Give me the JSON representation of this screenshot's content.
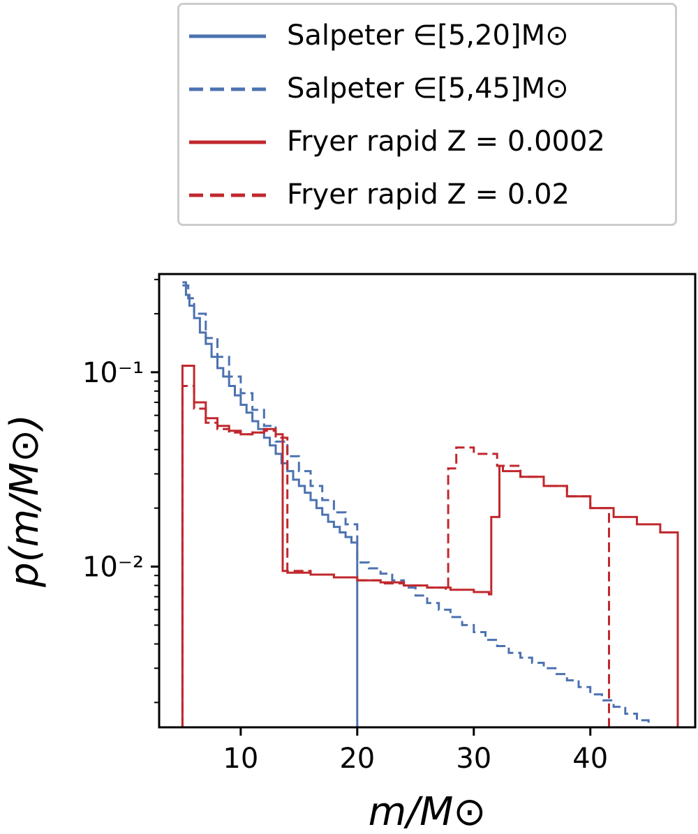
{
  "chart_data": {
    "type": "line",
    "xlabel": "m/M⊙",
    "ylabel": "p(m/M⊙)",
    "xlim": [
      3,
      49
    ],
    "ylim": [
      0.00149,
      0.32
    ],
    "yscale": "log",
    "x_ticks": [
      10,
      20,
      30,
      40
    ],
    "x_tick_labels": [
      "10",
      "20",
      "30",
      "40"
    ],
    "y_ticks": [
      0.01,
      0.1
    ],
    "y_tick_labels": [
      "10⁻²",
      "10⁻¹"
    ],
    "legend_placement": "above-plot",
    "grid": false,
    "series": [
      {
        "name": "Salpeter ∈[5,20]M⊙",
        "color": "#4C72B0",
        "linestyle": "solid",
        "x": [
          5,
          5.3,
          5.6,
          6,
          6.5,
          7,
          7.5,
          8,
          8.5,
          9,
          9.5,
          10,
          10.5,
          11,
          11.5,
          12,
          12.5,
          13,
          13.5,
          14,
          14.5,
          15,
          15.5,
          16,
          16.5,
          17,
          17.5,
          18,
          18.5,
          19,
          19.5,
          20,
          20
        ],
        "y": [
          0.29,
          0.25,
          0.22,
          0.19,
          0.16,
          0.14,
          0.12,
          0.105,
          0.095,
          0.085,
          0.076,
          0.068,
          0.062,
          0.056,
          0.051,
          0.046,
          0.042,
          0.038,
          0.034,
          0.031,
          0.028,
          0.026,
          0.024,
          0.022,
          0.02,
          0.0185,
          0.017,
          0.016,
          0.015,
          0.0142,
          0.0133,
          0.0125,
          0.00149
        ]
      },
      {
        "name": "Salpeter ∈[5,45]M⊙",
        "color": "#4C72B0",
        "linestyle": "dashed",
        "x": [
          5,
          5.5,
          6,
          7,
          8,
          9,
          10,
          11,
          12,
          13,
          14,
          15,
          16,
          17,
          18,
          19,
          20,
          21,
          22,
          23,
          24,
          25,
          26,
          27,
          28,
          29,
          30,
          31,
          32,
          33,
          34,
          35,
          36,
          37,
          38,
          39,
          40,
          41,
          42,
          43,
          44,
          45
        ],
        "y": [
          0.28,
          0.24,
          0.2,
          0.15,
          0.12,
          0.095,
          0.078,
          0.064,
          0.053,
          0.044,
          0.037,
          0.031,
          0.026,
          0.022,
          0.019,
          0.0165,
          0.0105,
          0.0098,
          0.0092,
          0.0085,
          0.0078,
          0.0071,
          0.0065,
          0.006,
          0.0055,
          0.005,
          0.0046,
          0.0042,
          0.0039,
          0.0036,
          0.0034,
          0.0032,
          0.003,
          0.0028,
          0.0026,
          0.0024,
          0.0022,
          0.00205,
          0.0019,
          0.00175,
          0.00162,
          0.0015
        ]
      },
      {
        "name": "Fryer rapid Z = 0.0002",
        "color": "#C0282D",
        "linestyle": "solid",
        "x": [
          5,
          5,
          6,
          7,
          8,
          9,
          10,
          11,
          12,
          13,
          13.6,
          14,
          16,
          18,
          20,
          22,
          24,
          26,
          28,
          30,
          31.3,
          31.5,
          32.2,
          32.5,
          34,
          36,
          38,
          40,
          42,
          44,
          46,
          47.5,
          47.5
        ],
        "y": [
          0.00149,
          0.108,
          0.07,
          0.058,
          0.053,
          0.05,
          0.048,
          0.049,
          0.051,
          0.048,
          0.0095,
          0.0093,
          0.0091,
          0.0088,
          0.0085,
          0.0083,
          0.008,
          0.0078,
          0.0076,
          0.0074,
          0.0072,
          0.018,
          0.033,
          0.031,
          0.029,
          0.026,
          0.023,
          0.02,
          0.018,
          0.0165,
          0.015,
          0.014,
          0.00149
        ]
      },
      {
        "name": "Fryer rapid Z = 0.02",
        "color": "#C0282D",
        "linestyle": "dashed",
        "x": [
          5,
          5,
          6,
          7,
          8,
          9,
          10,
          11,
          12,
          13,
          14,
          16,
          18,
          20,
          22,
          24,
          26,
          27.6,
          27.8,
          28.5,
          30,
          32,
          34,
          36,
          38,
          40,
          41.6,
          41.6
        ],
        "y": [
          0.00149,
          0.085,
          0.065,
          0.055,
          0.051,
          0.049,
          0.048,
          0.049,
          0.05,
          0.046,
          0.0095,
          0.0091,
          0.0088,
          0.0085,
          0.0082,
          0.008,
          0.0078,
          0.0076,
          0.032,
          0.041,
          0.038,
          0.033,
          0.029,
          0.026,
          0.023,
          0.02,
          0.018,
          0.00149
        ]
      }
    ]
  }
}
